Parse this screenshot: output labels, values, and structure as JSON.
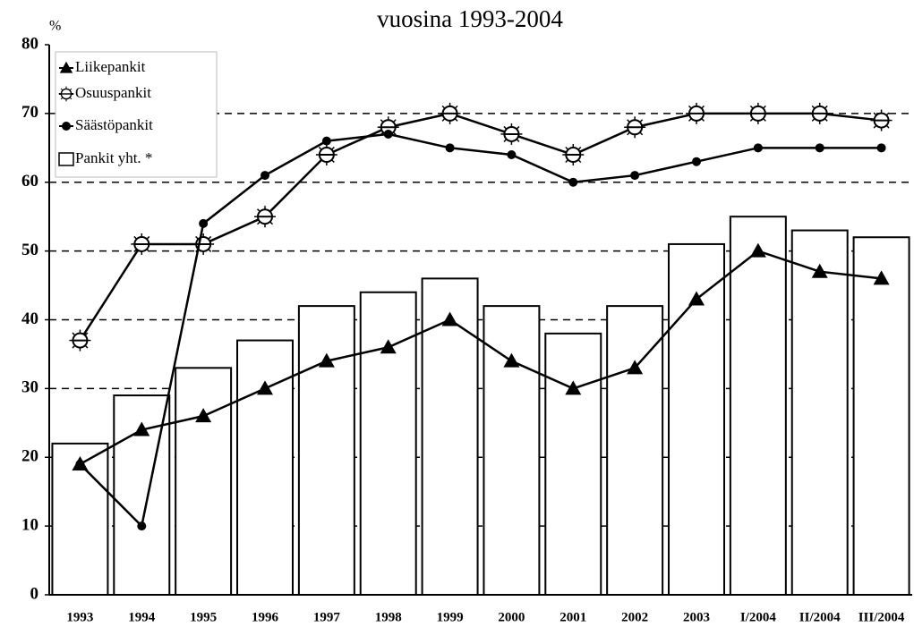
{
  "chart_data": {
    "type": "bar",
    "title": "vuosina 1993-2004",
    "y_label": "%",
    "categories": [
      "1993",
      "1994",
      "1995",
      "1996",
      "1997",
      "1998",
      "1999",
      "2000",
      "2001",
      "2002",
      "2003",
      "I/2004",
      "II/2004",
      "III/2004"
    ],
    "series": [
      {
        "name": "Liikepankit",
        "type": "line",
        "marker": "triangle",
        "color": "#000000",
        "values": [
          19,
          24,
          26,
          30,
          34,
          36,
          40,
          34,
          30,
          33,
          43,
          50,
          47,
          46
        ]
      },
      {
        "name": "Osuuspankit",
        "type": "line",
        "marker": "sun",
        "color": "#000000",
        "values": [
          37,
          51,
          51,
          55,
          64,
          68,
          70,
          67,
          64,
          68,
          70,
          70,
          70,
          69
        ]
      },
      {
        "name": "Säästöpankit",
        "type": "line",
        "marker": "dot",
        "color": "#000000",
        "values": [
          19,
          10,
          54,
          61,
          66,
          67,
          65,
          64,
          60,
          61,
          63,
          65,
          65,
          65
        ]
      },
      {
        "name": "Pankit yht. *",
        "type": "bar",
        "color": "#ffffff",
        "values": [
          22,
          29,
          33,
          37,
          42,
          44,
          46,
          42,
          38,
          42,
          51,
          55,
          53,
          52
        ]
      }
    ],
    "ylim": [
      0,
      80
    ],
    "yticks": [
      0,
      10,
      20,
      30,
      40,
      50,
      60,
      70,
      80
    ],
    "grid": true,
    "legend": "top-left"
  }
}
